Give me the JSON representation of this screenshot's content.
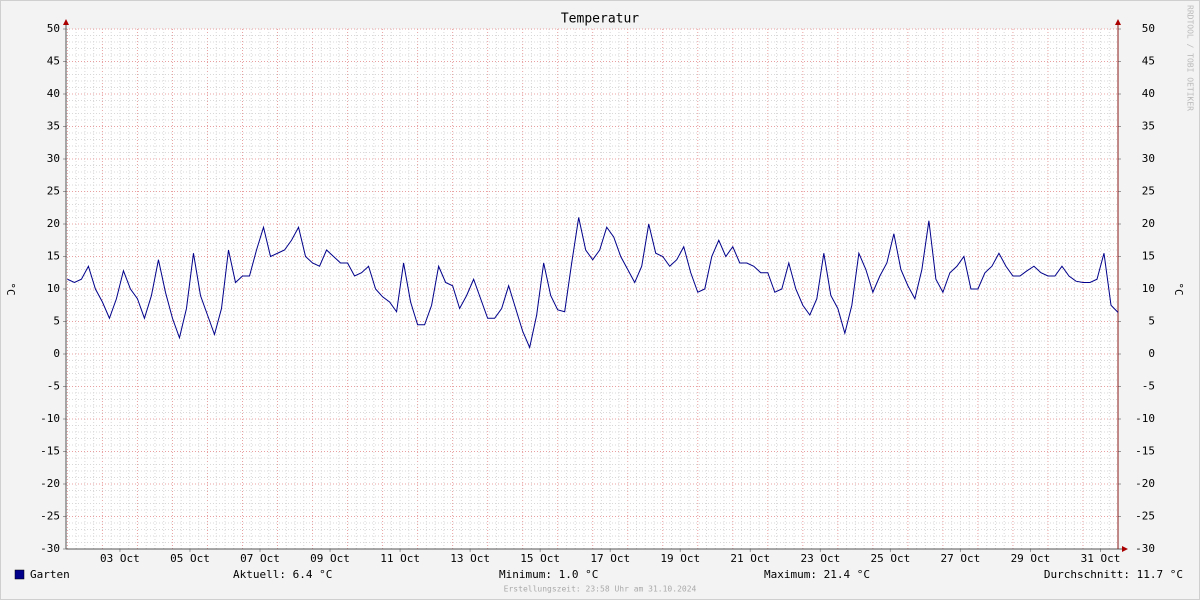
{
  "chart_data": {
    "type": "line",
    "title": "Temperatur",
    "y_label": "°C",
    "watermark": "RRDTOOL / TOBI OETIKER",
    "x": [
      2,
      2.2,
      2.4,
      2.6,
      2.8,
      3,
      3.2,
      3.4,
      3.6,
      3.8,
      4,
      4.2,
      4.4,
      4.6,
      4.8,
      5,
      5.2,
      5.4,
      5.6,
      5.8,
      6,
      6.2,
      6.4,
      6.6,
      6.8,
      7,
      7.2,
      7.4,
      7.6,
      7.8,
      8,
      8.2,
      8.4,
      8.6,
      8.8,
      9,
      9.2,
      9.4,
      9.6,
      9.8,
      10,
      10.2,
      10.4,
      10.6,
      10.8,
      11,
      11.2,
      11.4,
      11.6,
      11.8,
      12,
      12.2,
      12.4,
      12.6,
      12.8,
      13,
      13.2,
      13.4,
      13.6,
      13.8,
      14,
      14.2,
      14.4,
      14.6,
      14.8,
      15,
      15.2,
      15.4,
      15.6,
      15.8,
      16,
      16.2,
      16.4,
      16.6,
      16.8,
      17,
      17.2,
      17.4,
      17.6,
      17.8,
      18,
      18.2,
      18.4,
      18.6,
      18.8,
      19,
      19.2,
      19.4,
      19.6,
      19.8,
      20,
      20.2,
      20.4,
      20.6,
      20.8,
      21,
      21.2,
      21.4,
      21.6,
      21.8,
      22,
      22.2,
      22.4,
      22.6,
      22.8,
      23,
      23.2,
      23.4,
      23.6,
      23.8,
      24,
      24.2,
      24.4,
      24.6,
      24.8,
      25,
      25.2,
      25.4,
      25.6,
      25.8,
      26,
      26.2,
      26.4,
      26.6,
      26.8,
      27,
      27.2,
      27.4,
      27.6,
      27.8,
      28,
      28.2,
      28.4,
      28.6,
      28.8,
      29,
      29.2,
      29.4,
      29.6,
      29.8,
      30,
      30.2,
      30.4,
      30.6,
      30.8,
      31,
      31.2,
      31.4,
      31.6,
      31.8,
      32
    ],
    "series": [
      {
        "name": "Garten",
        "color": "#00008b",
        "values": [
          11.5,
          11,
          11.5,
          13.5,
          10,
          8,
          5.5,
          8.5,
          12.8,
          10,
          8.5,
          5.5,
          9,
          14.5,
          9.5,
          5.5,
          2.5,
          7,
          15.5,
          9,
          6,
          3,
          7,
          16,
          11,
          12,
          12,
          16,
          19.5,
          15,
          15.5,
          16,
          17.5,
          19.5,
          15,
          14,
          13.5,
          16,
          15,
          14,
          14,
          12,
          12.5,
          13.5,
          10,
          8.8,
          8,
          6.5,
          14,
          8,
          4.5,
          4.5,
          7.5,
          13.5,
          11,
          10.5,
          7,
          9,
          11.5,
          8.5,
          5.5,
          5.5,
          7,
          10.5,
          7,
          3.5,
          1,
          6,
          14,
          9,
          6.8,
          6.5,
          14,
          21,
          16,
          14.5,
          16,
          19.5,
          18,
          15,
          13,
          11,
          13.5,
          20,
          15.5,
          15,
          13.5,
          14.5,
          16.5,
          12.5,
          9.5,
          10,
          15,
          17.5,
          15,
          16.5,
          14,
          14,
          13.5,
          12.5,
          12.5,
          9.5,
          10,
          14,
          10,
          7.5,
          6,
          8.5,
          15.5,
          9,
          7,
          3.2,
          7.5,
          15.5,
          13,
          9.5,
          12,
          14,
          18.5,
          13,
          10.5,
          8.5,
          13,
          20.5,
          11.5,
          9.5,
          12.5,
          13.5,
          15,
          10,
          10,
          12.5,
          13.5,
          15.5,
          13.5,
          12,
          12,
          12.8,
          13.5,
          12.5,
          12,
          12,
          13.5,
          12,
          11.2,
          11,
          11,
          11.5,
          15.5,
          7.5,
          6.4
        ]
      }
    ],
    "xlim": [
      1.96,
      32
    ],
    "xticks": [
      {
        "value": 3.5,
        "label": "03 Oct"
      },
      {
        "value": 5.5,
        "label": "05 Oct"
      },
      {
        "value": 7.5,
        "label": "07 Oct"
      },
      {
        "value": 9.5,
        "label": "09 Oct"
      },
      {
        "value": 11.5,
        "label": "11 Oct"
      },
      {
        "value": 13.5,
        "label": "13 Oct"
      },
      {
        "value": 15.5,
        "label": "15 Oct"
      },
      {
        "value": 17.5,
        "label": "17 Oct"
      },
      {
        "value": 19.5,
        "label": "19 Oct"
      },
      {
        "value": 21.5,
        "label": "21 Oct"
      },
      {
        "value": 23.5,
        "label": "23 Oct"
      },
      {
        "value": 25.5,
        "label": "25 Oct"
      },
      {
        "value": 27.5,
        "label": "27 Oct"
      },
      {
        "value": 29.5,
        "label": "29 Oct"
      },
      {
        "value": 31.5,
        "label": "31 Oct"
      }
    ],
    "ylim": [
      -30,
      50
    ],
    "yticks": [
      -30,
      -25,
      -20,
      -15,
      -10,
      -5,
      0,
      5,
      10,
      15,
      20,
      25,
      30,
      35,
      40,
      45,
      50
    ],
    "grid": true,
    "stats": [
      "Aktuell: 6.4 °C",
      "Minimum: 1.0 °C",
      "Maximum: 21.4 °C",
      "Durchschnitt: 11.7 °C"
    ],
    "footer": "Erstellungszeit: 23:58 Uhr am 31.10.2024"
  }
}
